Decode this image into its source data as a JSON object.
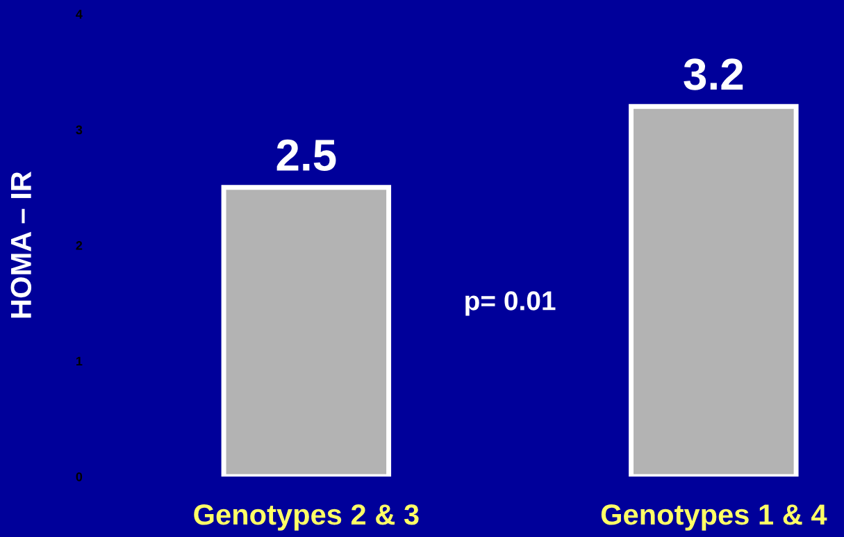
{
  "chart_data": {
    "type": "bar",
    "ylabel": "HOMA – IR",
    "categories": [
      "Genotypes 2 & 3",
      "Genotypes 1 & 4"
    ],
    "values": [
      2.5,
      3.2
    ],
    "color": "#b3b3b3",
    "ylim": [
      0,
      4
    ],
    "yticks": [
      0,
      1,
      2,
      3,
      4
    ],
    "data_labels": true,
    "grid": false,
    "legend": false,
    "annotations": [
      "p= 0.01"
    ]
  }
}
